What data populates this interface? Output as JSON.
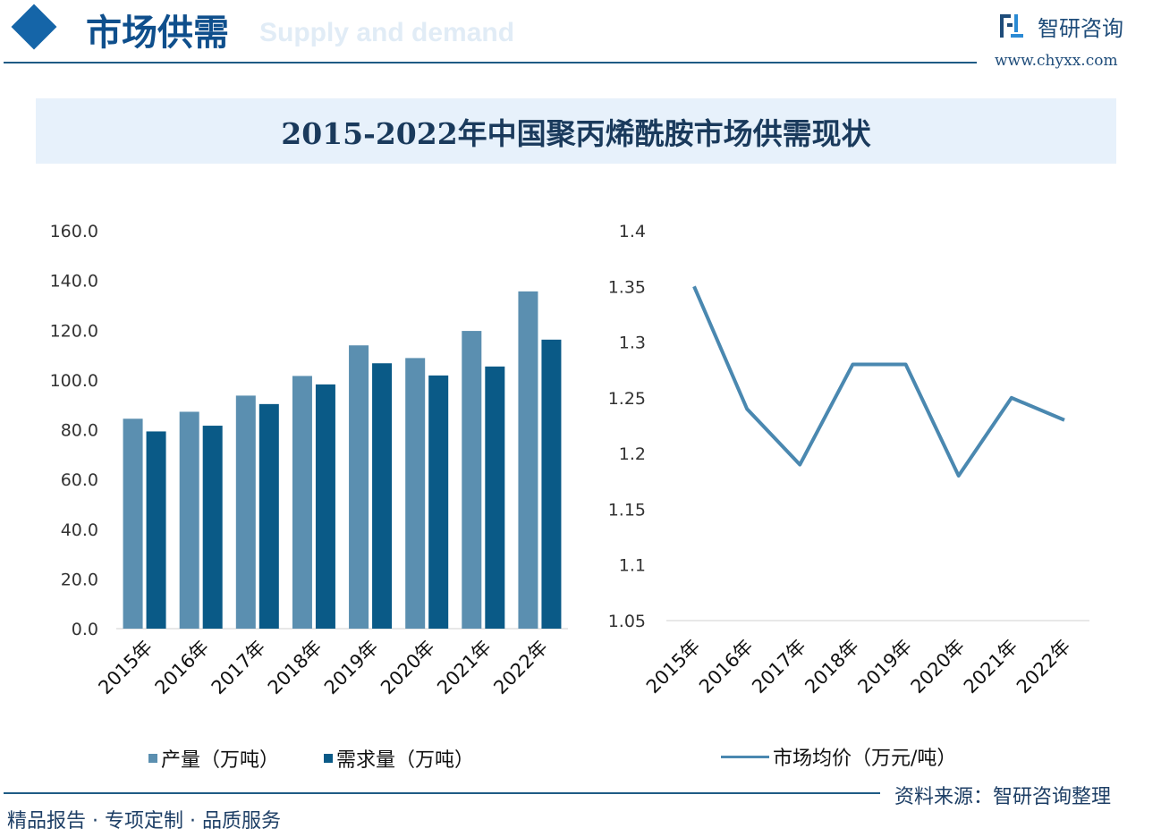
{
  "header": {
    "title": "市场供需",
    "subtitle": "Supply and demand",
    "logo_text": "智研咨询",
    "logo_url": "www.chyxx.com"
  },
  "footer": {
    "slogan": "精品报告 · 专项定制 · 品质服务",
    "source": "资料来源：智研咨询整理"
  },
  "colors": {
    "production": "#5b8fb0",
    "demand": "#0a5a87",
    "price": "#4a88b0",
    "header": "#1565a8",
    "band": "#e7f1fb"
  },
  "chart_data": [
    {
      "type": "bar",
      "title": "2015-2022年中国聚丙烯酰胺市场供需现状",
      "categories": [
        "2015年",
        "2016年",
        "2017年",
        "2018年",
        "2019年",
        "2020年",
        "2021年",
        "2022年"
      ],
      "ylim": [
        0,
        160
      ],
      "yticks": [
        "0.0",
        "20.0",
        "40.0",
        "60.0",
        "80.0",
        "100.0",
        "120.0",
        "140.0",
        "160.0"
      ],
      "legend_placement": "bottom",
      "grid": false,
      "series": [
        {
          "name": "产量（万吨）",
          "values": [
            84.4,
            87.2,
            93.7,
            101.6,
            113.9,
            108.8,
            119.7,
            135.6
          ]
        },
        {
          "name": "需求量（万吨）",
          "values": [
            79.3,
            81.6,
            90.3,
            98.2,
            106.7,
            101.8,
            105.4,
            116.2
          ]
        }
      ]
    },
    {
      "type": "line",
      "categories": [
        "2015年",
        "2016年",
        "2017年",
        "2018年",
        "2019年",
        "2020年",
        "2021年",
        "2022年"
      ],
      "ylim": [
        1.05,
        1.4
      ],
      "yticks": [
        "1.05",
        "1.1",
        "1.15",
        "1.2",
        "1.25",
        "1.3",
        "1.35",
        "1.4"
      ],
      "legend_placement": "bottom",
      "grid": false,
      "series": [
        {
          "name": "市场均价（万元/吨）",
          "values": [
            1.35,
            1.24,
            1.19,
            1.28,
            1.28,
            1.18,
            1.25,
            1.23
          ]
        }
      ]
    }
  ]
}
